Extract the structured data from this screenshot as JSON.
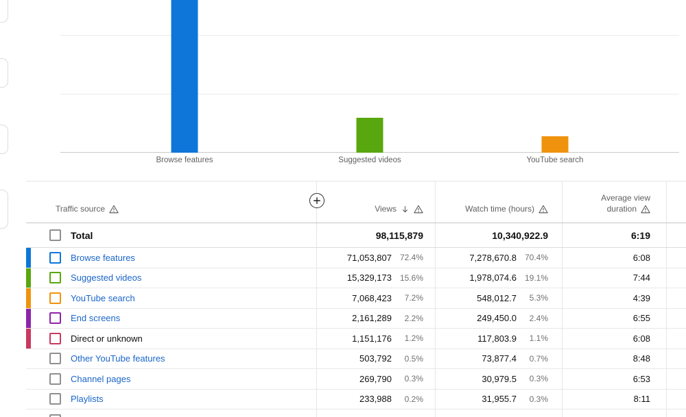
{
  "chart_data": {
    "type": "bar",
    "title": "",
    "xlabel": "Traffic source",
    "ylabel": "Views",
    "categories": [
      "Browse features",
      "Suggested videos",
      "YouTube search"
    ],
    "values": [
      71053807,
      15329173,
      7068423
    ],
    "bar_colors": [
      "#0e76d8",
      "#58a70e",
      "#ef930e"
    ],
    "ylim": [
      0,
      65000000
    ],
    "grid": true,
    "legend": "none",
    "note": "tallest bar cut off at top of viewport; y-axis tick labels not visible"
  },
  "table": {
    "columns": [
      {
        "label": "Traffic source"
      },
      {
        "label": "Views"
      },
      {
        "label": "Watch time (hours)"
      },
      {
        "label": "Average view duration",
        "label_line1": "Average view",
        "label_line2": "duration"
      }
    ],
    "sort": {
      "column": "Views",
      "direction": "desc"
    },
    "total": {
      "label": "Total",
      "views": "98,115,879",
      "watch_time": "10,340,922.9",
      "avg_duration": "6:19"
    },
    "rows": [
      {
        "label": "Browse features",
        "color": "#0e76d8",
        "link": true,
        "views": "71,053,807",
        "views_pct": "72.4%",
        "watch_time": "7,278,670.8",
        "watch_pct": "70.4%",
        "avg_duration": "6:08"
      },
      {
        "label": "Suggested videos",
        "color": "#58a70e",
        "link": true,
        "views": "15,329,173",
        "views_pct": "15.6%",
        "watch_time": "1,978,074.6",
        "watch_pct": "19.1%",
        "avg_duration": "7:44"
      },
      {
        "label": "YouTube search",
        "color": "#ef930e",
        "link": true,
        "views": "7,068,423",
        "views_pct": "7.2%",
        "watch_time": "548,012.7",
        "watch_pct": "5.3%",
        "avg_duration": "4:39"
      },
      {
        "label": "End screens",
        "color": "#8e24aa",
        "link": true,
        "views": "2,161,289",
        "views_pct": "2.2%",
        "watch_time": "249,450.0",
        "watch_pct": "2.4%",
        "avg_duration": "6:55"
      },
      {
        "label": "Direct or unknown",
        "color": "#c9395e",
        "link": false,
        "views": "1,151,176",
        "views_pct": "1.2%",
        "watch_time": "117,803.9",
        "watch_pct": "1.1%",
        "avg_duration": "6:08"
      },
      {
        "label": "Other YouTube features",
        "color": null,
        "link": true,
        "views": "503,792",
        "views_pct": "0.5%",
        "watch_time": "73,877.4",
        "watch_pct": "0.7%",
        "avg_duration": "8:48"
      },
      {
        "label": "Channel pages",
        "color": null,
        "link": true,
        "views": "269,790",
        "views_pct": "0.3%",
        "watch_time": "30,979.5",
        "watch_pct": "0.3%",
        "avg_duration": "6:53"
      },
      {
        "label": "Playlists",
        "color": null,
        "link": true,
        "views": "233,988",
        "views_pct": "0.2%",
        "watch_time": "31,955.7",
        "watch_pct": "0.3%",
        "avg_duration": "8:11"
      },
      {
        "label": "",
        "color": null,
        "link": false,
        "partial": true
      }
    ]
  },
  "colors": {
    "link_blue": "#1b66c9",
    "text_dark": "#0d0d0d",
    "text_gray": "#606060",
    "gridline": "#ececec",
    "axis": "#c9c9c9",
    "default_checkbox": "#8f8f8f"
  }
}
